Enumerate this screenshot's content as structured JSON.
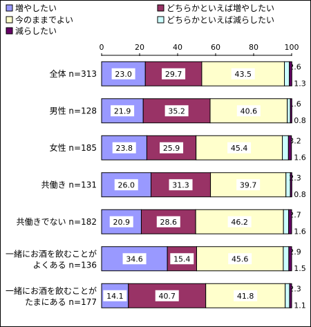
{
  "colors": {
    "s1": "#9999ff",
    "s2": "#993366",
    "s3": "#ffffcc",
    "s4": "#ccffff",
    "s5": "#660066",
    "border": "#000000",
    "text": "#000000"
  },
  "chart_data": {
    "type": "bar",
    "orientation": "horizontal",
    "stacked": true,
    "xlim": [
      0,
      100
    ],
    "xticks": [
      "0",
      "20",
      "40",
      "60",
      "80",
      "100"
    ],
    "legend_placement": "top",
    "categories": [
      [
        "全体  n=313"
      ],
      [
        "男性  n=128"
      ],
      [
        "女性  n=185"
      ],
      [
        "共働き  n=131"
      ],
      [
        "共働きでない  n=182"
      ],
      [
        "一緒にお酒を飲むことが",
        "よくある  n=136"
      ],
      [
        "一緒にお酒を飲むことが",
        "たまにある  n=177"
      ]
    ],
    "series": [
      {
        "name": "増やしたい",
        "values": [
          23.0,
          21.9,
          23.8,
          26.0,
          20.9,
          34.6,
          14.1
        ]
      },
      {
        "name": "どちらかといえば増やしたい",
        "values": [
          29.7,
          35.2,
          25.9,
          31.3,
          28.6,
          15.4,
          40.7
        ]
      },
      {
        "name": "今のままでよい",
        "values": [
          43.5,
          40.6,
          45.4,
          39.7,
          46.2,
          45.6,
          41.8
        ]
      },
      {
        "name": "どちらかといえば減らしたい",
        "values": [
          2.6,
          1.6,
          3.2,
          2.3,
          2.7,
          2.9,
          2.3
        ]
      },
      {
        "name": "減らしたい",
        "values": [
          1.3,
          0.8,
          1.6,
          0.8,
          1.6,
          1.5,
          1.1
        ]
      }
    ],
    "value_labels": [
      [
        "23.0",
        "29.7",
        "43.5",
        "2.6",
        "1.3"
      ],
      [
        "21.9",
        "35.2",
        "40.6",
        "1.6",
        "0.8"
      ],
      [
        "23.8",
        "25.9",
        "45.4",
        "3.2",
        "1.6"
      ],
      [
        "26.0",
        "31.3",
        "39.7",
        "2.3",
        "0.8"
      ],
      [
        "20.9",
        "28.6",
        "46.2",
        "2.7",
        "1.6"
      ],
      [
        "34.6",
        "15.4",
        "45.6",
        "2.9",
        "1.5"
      ],
      [
        "14.1",
        "40.7",
        "41.8",
        "2.3",
        "1.1"
      ]
    ]
  }
}
